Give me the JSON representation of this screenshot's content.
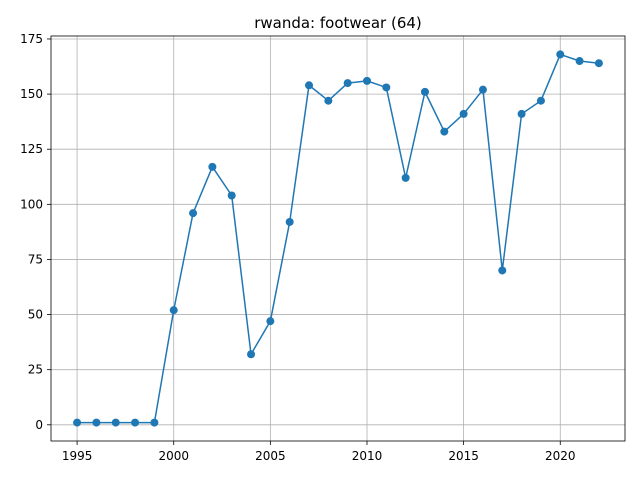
{
  "chart_data": {
    "type": "line",
    "title": "rwanda: footwear (64)",
    "xlabel": "",
    "ylabel": "",
    "x": [
      1995,
      1996,
      1997,
      1998,
      1999,
      2000,
      2001,
      2002,
      2003,
      2004,
      2005,
      2006,
      2007,
      2008,
      2009,
      2010,
      2011,
      2012,
      2013,
      2014,
      2015,
      2016,
      2017,
      2018,
      2019,
      2020,
      2021,
      2022
    ],
    "series": [
      {
        "values": [
          1,
          1,
          1,
          1,
          1,
          52,
          96,
          117,
          104,
          32,
          47,
          92,
          154,
          147,
          155,
          156,
          153,
          112,
          151,
          133,
          141,
          152,
          70,
          141,
          147,
          168,
          165,
          164
        ],
        "color": "#1f77b4",
        "marker": "circle"
      }
    ],
    "xlim": [
      1993.65,
      2023.35
    ],
    "ylim": [
      -7.35,
      176.35
    ],
    "x_ticks": [
      1995,
      2000,
      2005,
      2010,
      2015,
      2020
    ],
    "y_ticks": [
      0,
      25,
      50,
      75,
      100,
      125,
      150,
      175
    ],
    "grid": true,
    "legend": "none"
  }
}
